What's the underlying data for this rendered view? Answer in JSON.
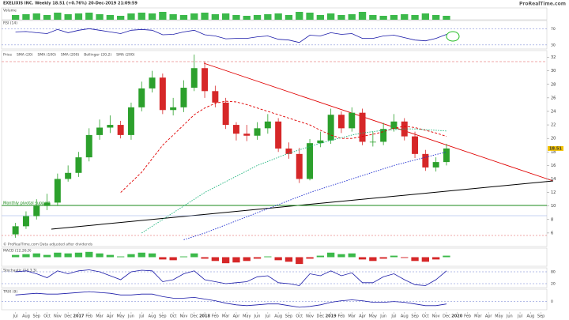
{
  "chart_data": {
    "type": "candlestick",
    "title": "EXELIXIS INC. Weekly 18.51 (+0.76%) 20-Dec-2019 21:09:59",
    "source": "ProRealTime.com",
    "legend": [
      "Price",
      "SMA (20)",
      "SMA (100)",
      "SMA (200)",
      "Bollinger (20,2)",
      "SMA (200)"
    ],
    "annotations": [
      "Monthly pivotal support",
      "© ProRealTime.com Data adjusted after dividends"
    ],
    "x": [
      "Jul",
      "Aug",
      "Sep",
      "Oct",
      "Nov",
      "Dec",
      "2017",
      "Feb",
      "Mar",
      "Apr",
      "May",
      "Jun",
      "Jul",
      "Aug",
      "Sep",
      "Oct",
      "Nov",
      "Dec",
      "2018",
      "Feb",
      "Mar",
      "Apr",
      "May",
      "Jun",
      "Jul",
      "Aug",
      "Sep",
      "Oct",
      "Nov",
      "Dec",
      "2019",
      "Feb",
      "Mar",
      "Apr",
      "May",
      "Jun",
      "Jul",
      "Aug",
      "Sep",
      "Oct",
      "Nov",
      "Dec",
      "2020",
      "Feb",
      "Mar",
      "Apr",
      "May",
      "Jun",
      "Jul",
      "Aug",
      "Sep"
    ],
    "open": [
      5.8,
      7,
      8.5,
      10,
      10.5,
      14,
      14.9,
      17.2,
      20.5,
      21.6,
      22,
      20.5,
      24.6,
      27.4,
      29,
      24.2,
      24.6,
      27.5,
      30.4,
      27,
      25.3,
      22,
      20.7,
      20.4,
      21.5,
      22.5,
      18.5,
      17.7,
      14,
      19.3,
      19.7,
      23.5,
      21.5,
      23.8,
      19.5,
      19.5,
      21.4,
      22.5,
      20.3,
      17.7,
      15.7,
      16.5,
      null,
      null,
      null,
      null,
      null,
      null,
      null,
      null,
      null
    ],
    "high": [
      7.5,
      9.2,
      11,
      11.8,
      14.8,
      16,
      18,
      21.5,
      22.8,
      23.4,
      22.6,
      25.3,
      28.4,
      30,
      29.6,
      26,
      28.6,
      32.4,
      31.4,
      27.8,
      26,
      22.4,
      22,
      22.4,
      23.6,
      23,
      19.4,
      18.6,
      19.9,
      21,
      24.4,
      24,
      24.6,
      24.4,
      21,
      22.3,
      23.6,
      23,
      21,
      18.3,
      17.2,
      19.2,
      null,
      null,
      null,
      null,
      null,
      null,
      null,
      null,
      null
    ],
    "low": [
      5.3,
      6.6,
      8,
      9.4,
      10,
      13.6,
      14.3,
      16.6,
      19.8,
      20.8,
      20,
      19.8,
      24,
      26.8,
      23.6,
      23.4,
      23.9,
      27,
      26,
      24.6,
      21.4,
      19.7,
      19.6,
      19.8,
      20.7,
      18,
      17,
      13.4,
      13.8,
      18.7,
      19.2,
      20.8,
      21,
      19,
      18.8,
      19,
      21,
      19.7,
      17.1,
      15.2,
      15.1,
      16,
      null,
      null,
      null,
      null,
      null,
      null,
      null,
      null,
      null
    ],
    "close": [
      7,
      8.5,
      10,
      10.5,
      14,
      14.9,
      17.2,
      20.5,
      21.6,
      22,
      20.5,
      24.6,
      27.4,
      29,
      24.2,
      24.6,
      27.5,
      30.4,
      27,
      25.3,
      22,
      20.7,
      20.4,
      21.5,
      22.5,
      18.5,
      17.7,
      14,
      19.3,
      19.7,
      23.5,
      21.5,
      23.8,
      19.5,
      19.5,
      21.4,
      22.5,
      20.3,
      17.7,
      15.7,
      16.5,
      18.51,
      null,
      null,
      null,
      null,
      null,
      null,
      null,
      null,
      null
    ],
    "up_color": "#2ca02c",
    "down_color": "#d62728",
    "ylim": [
      4,
      33
    ],
    "yticks": [
      6,
      8,
      10,
      12,
      14,
      16,
      18,
      20,
      22,
      24,
      26,
      28,
      30,
      32
    ],
    "series": [
      {
        "name": "SMA (20)",
        "color": "#e00000",
        "dash": "3,2",
        "values": [
          null,
          null,
          null,
          null,
          null,
          null,
          null,
          null,
          null,
          null,
          12,
          13.5,
          15,
          17,
          19,
          20.5,
          22,
          23.5,
          24.5,
          25.2,
          25.5,
          25.4,
          25,
          24.5,
          24,
          23.5,
          23,
          22.5,
          22,
          21.2,
          20.5,
          20,
          20,
          20.3,
          20.6,
          21,
          21.5,
          21.8,
          21.6,
          21.2,
          20.8,
          20.3,
          null,
          null,
          null,
          null,
          null,
          null,
          null,
          null,
          null
        ]
      },
      {
        "name": "SMA (100)",
        "color": "#1f2fd0",
        "dash": "1.5,1.5",
        "values": [
          null,
          null,
          null,
          null,
          null,
          null,
          null,
          null,
          null,
          null,
          null,
          null,
          null,
          null,
          null,
          null,
          5,
          5.5,
          6,
          6.6,
          7.2,
          7.8,
          8.4,
          9,
          9.6,
          10.2,
          10.8,
          11.4,
          12,
          12.5,
          13,
          13.5,
          14,
          14.5,
          15,
          15.5,
          16,
          16.4,
          16.8,
          17.2,
          17.6,
          18,
          null,
          null,
          null,
          null,
          null,
          null,
          null,
          null,
          null
        ]
      },
      {
        "name": "SMA (200)",
        "color": "#19b37a",
        "dash": "1.5,1.5",
        "values": [
          null,
          null,
          null,
          null,
          null,
          null,
          null,
          null,
          null,
          null,
          null,
          null,
          6,
          7,
          8,
          9,
          10,
          11,
          12,
          12.8,
          13.6,
          14.4,
          15.2,
          16,
          16.6,
          17.2,
          17.8,
          18.3,
          18.8,
          19.3,
          19.7,
          20.1,
          20.5,
          20.8,
          21,
          21.2,
          21.3,
          21.4,
          21.4,
          21.3,
          21.2,
          21.1,
          null,
          null,
          null,
          null,
          null,
          null,
          null,
          null,
          null
        ]
      }
    ],
    "panels": [
      {
        "name": "Volume",
        "type": "bar",
        "color": "#3cb94a",
        "ylim": [
          0,
          15
        ],
        "values": [
          6,
          7,
          8,
          6,
          9,
          7,
          8,
          9,
          7,
          6,
          5,
          8,
          9,
          8,
          10,
          7,
          6,
          8,
          9,
          7,
          8,
          6,
          5,
          6,
          7,
          8,
          6,
          10,
          9,
          6,
          8,
          6,
          7,
          10,
          6,
          5,
          6,
          7,
          6,
          8,
          6,
          5,
          null,
          null,
          null,
          null,
          null,
          null,
          null,
          null,
          null
        ]
      },
      {
        "name": "RSI (14)",
        "type": "line",
        "color": "#1a1aa8",
        "ylim": [
          20,
          90
        ],
        "yticks": [
          30,
          70
        ],
        "values": [
          62,
          63,
          60,
          58,
          68,
          60,
          66,
          70,
          66,
          62,
          58,
          66,
          68,
          66,
          55,
          56,
          62,
          66,
          55,
          52,
          45,
          46,
          46,
          50,
          52,
          44,
          42,
          36,
          54,
          52,
          60,
          56,
          58,
          46,
          46,
          52,
          54,
          48,
          42,
          40,
          46,
          56,
          null,
          null,
          null,
          null,
          null,
          null,
          null,
          null,
          null
        ]
      },
      {
        "name": "MACD (12,26,9)",
        "type": "hist",
        "color": "#3cb94a",
        "neg_color": "#d62728",
        "ylim": [
          -1.2,
          1.2
        ],
        "values": [
          0.3,
          0.4,
          0.5,
          0.3,
          0.6,
          0.5,
          0.6,
          0.7,
          0.5,
          0.3,
          0.1,
          0.4,
          0.6,
          0.5,
          -0.3,
          -0.4,
          0.1,
          0.5,
          -0.2,
          -0.5,
          -0.8,
          -0.7,
          -0.5,
          -0.2,
          0.1,
          -0.4,
          -0.6,
          -0.9,
          -0.2,
          0.2,
          0.6,
          0.4,
          0.5,
          -0.3,
          -0.5,
          -0.2,
          0.2,
          -0.1,
          -0.5,
          -0.6,
          -0.3,
          0.2,
          null,
          null,
          null,
          null,
          null,
          null,
          null,
          null,
          null
        ]
      },
      {
        "name": "Stochastic (14,3,3)",
        "type": "line",
        "color": "#1a1aa8",
        "ylim": [
          0,
          100
        ],
        "yticks": [
          20,
          80
        ],
        "values": [
          80,
          85,
          70,
          50,
          85,
          70,
          85,
          90,
          80,
          60,
          40,
          80,
          88,
          85,
          30,
          40,
          70,
          85,
          40,
          30,
          20,
          25,
          30,
          55,
          60,
          25,
          20,
          10,
          70,
          60,
          85,
          60,
          75,
          25,
          25,
          55,
          70,
          40,
          15,
          10,
          40,
          85,
          null,
          null,
          null,
          null,
          null,
          null,
          null,
          null,
          null
        ]
      },
      {
        "name": "TRIX (9)",
        "type": "line",
        "color": "#1a1aa8",
        "ylim": [
          -1,
          1.5
        ],
        "yticks": [
          0
        ],
        "values": [
          0.8,
          0.9,
          1,
          0.9,
          0.9,
          1,
          1.1,
          1.2,
          1.1,
          1,
          0.8,
          0.8,
          0.9,
          0.9,
          0.6,
          0.4,
          0.4,
          0.5,
          0.3,
          0.1,
          -0.2,
          -0.4,
          -0.5,
          -0.4,
          -0.3,
          -0.3,
          -0.5,
          -0.7,
          -0.6,
          -0.4,
          -0.1,
          0.1,
          0.2,
          0.1,
          -0.1,
          -0.1,
          0,
          -0.1,
          -0.3,
          -0.5,
          -0.5,
          -0.3,
          null,
          null,
          null,
          null,
          null,
          null,
          null,
          null,
          null
        ]
      }
    ]
  }
}
